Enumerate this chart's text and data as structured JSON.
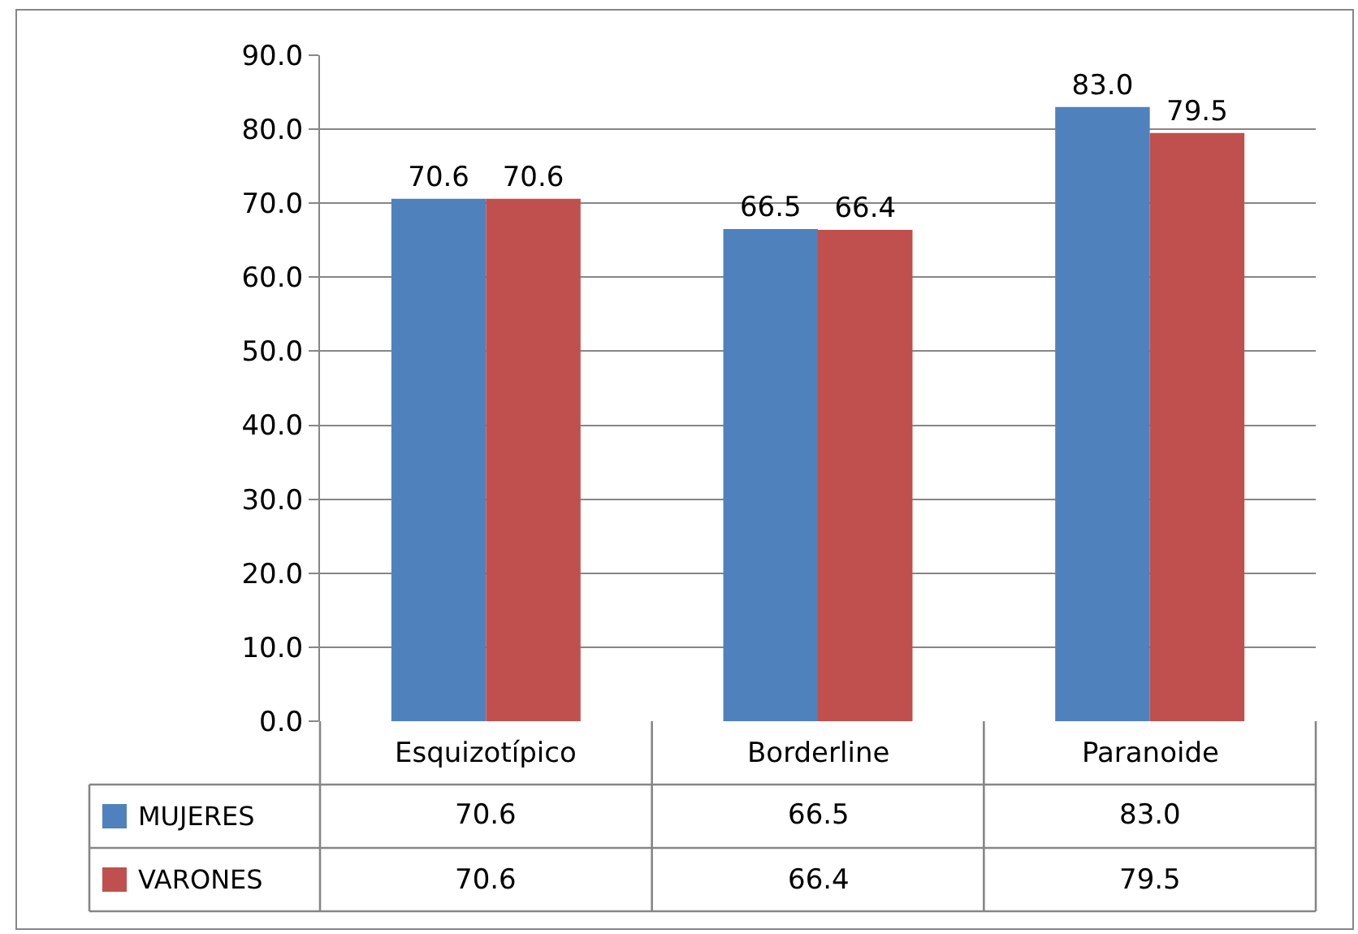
{
  "chart_data": {
    "type": "bar",
    "categories": [
      "Esquizotípico",
      "Borderline",
      "Paranoide"
    ],
    "series": [
      {
        "name": "MUJERES",
        "color": "#4f81bd",
        "values": [
          70.6,
          66.5,
          83.0
        ],
        "value_labels": [
          "70.6",
          "66.5",
          "83.0"
        ]
      },
      {
        "name": "VARONES",
        "color": "#c0504d",
        "values": [
          70.6,
          66.4,
          79.5
        ],
        "value_labels": [
          "70.6",
          "66.4",
          "79.5"
        ]
      }
    ],
    "ylim": [
      0,
      90
    ],
    "yticks": [
      {
        "value": 0,
        "label": "0.0"
      },
      {
        "value": 10,
        "label": "10.0"
      },
      {
        "value": 20,
        "label": "20.0"
      },
      {
        "value": 30,
        "label": "30.0"
      },
      {
        "value": 40,
        "label": "40.0"
      },
      {
        "value": 50,
        "label": "50.0"
      },
      {
        "value": 60,
        "label": "60.0"
      },
      {
        "value": 70,
        "label": "70.0"
      },
      {
        "value": 80,
        "label": "80.0"
      },
      {
        "value": 90,
        "label": "90.0"
      }
    ],
    "grid": "y",
    "legend": "bottom left"
  }
}
